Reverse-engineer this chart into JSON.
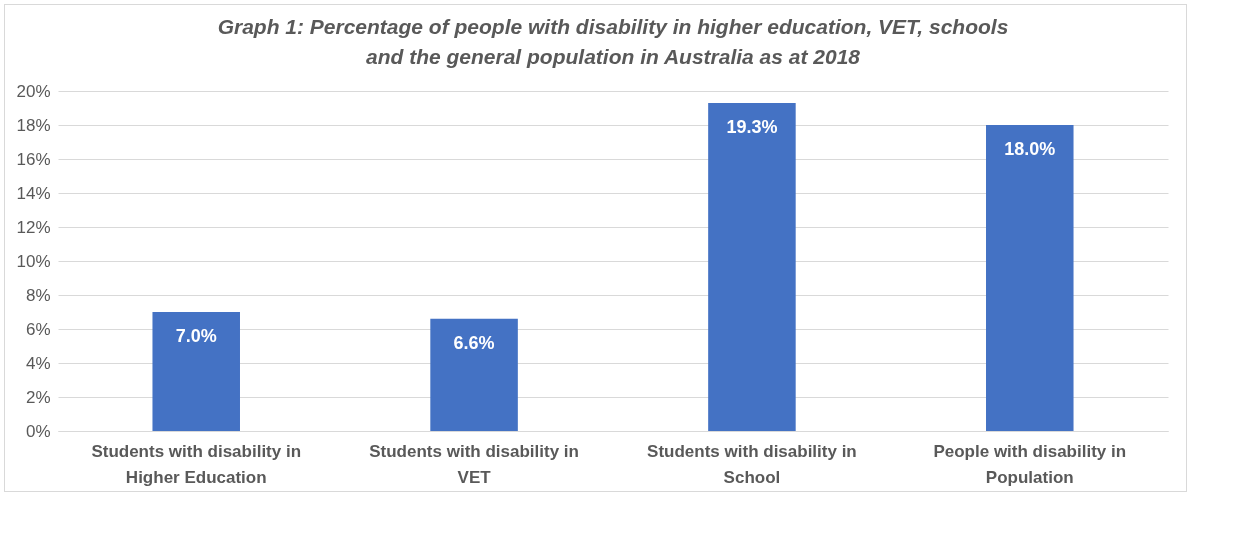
{
  "chart_data": {
    "type": "bar",
    "title": "Graph 1: Percentage of people with disability in higher education, VET, schools and the general population in Australia as at 2018",
    "categories": [
      "Students with disability in Higher Education",
      "Students with disability in VET",
      "Students with disability in School",
      "People with disability in Population"
    ],
    "values": [
      7.0,
      6.6,
      19.3,
      18.0
    ],
    "value_labels": [
      "7.0%",
      "6.6%",
      "19.3%",
      "18.0%"
    ],
    "color": "#4472c4",
    "ylim": [
      0,
      20
    ],
    "yticks": [
      {
        "value": 0,
        "label": "0%"
      },
      {
        "value": 2,
        "label": "2%"
      },
      {
        "value": 4,
        "label": "4%"
      },
      {
        "value": 6,
        "label": "6%"
      },
      {
        "value": 8,
        "label": "8%"
      },
      {
        "value": 10,
        "label": "10%"
      },
      {
        "value": 12,
        "label": "12%"
      },
      {
        "value": 14,
        "label": "14%"
      },
      {
        "value": 16,
        "label": "16%"
      },
      {
        "value": 18,
        "label": "18%"
      },
      {
        "value": 20,
        "label": "20%"
      }
    ],
    "grid": "y"
  }
}
